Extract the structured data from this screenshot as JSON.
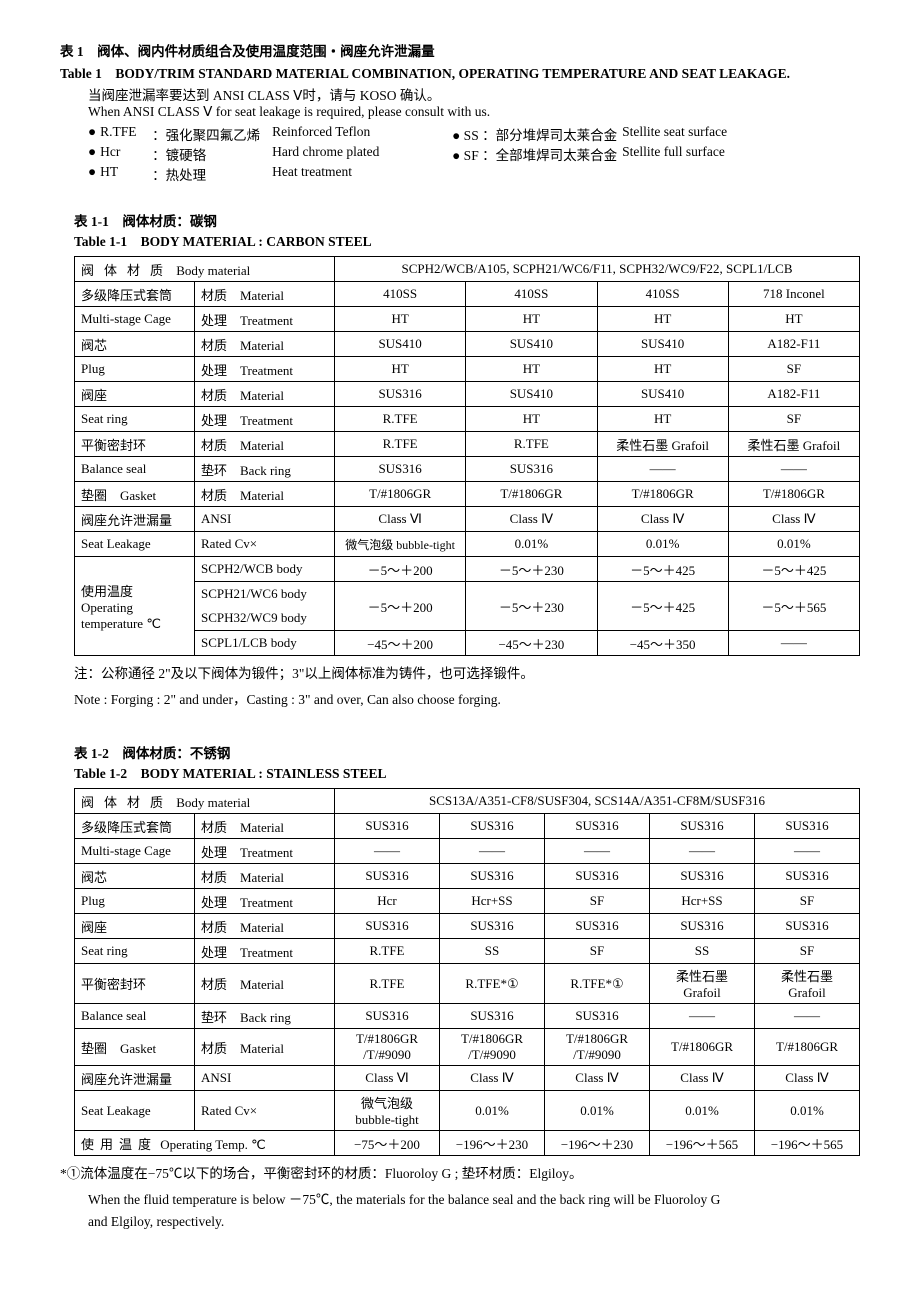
{
  "header": {
    "title_cn": "表 1　阀体、阀内件材质组合及使用温度范围・阀座允许泄漏量",
    "title_en": "Table 1　BODY/TRIM STANDARD MATERIAL COMBINATION, OPERATING TEMPERATURE AND SEAT LEAKAGE.",
    "note1_cn": "当阀座泄漏率要达到 ANSI CLASS Ⅴ时，请与 KOSO 确认。",
    "note1_en": "When ANSI CLASS Ⅴ for seat leakage is required, please consult with us.",
    "legend": [
      {
        "abbr": "R.TFE",
        "cn": "：强化聚四氟乙烯",
        "en": "Reinforced Teflon"
      },
      {
        "abbr": "Hcr",
        "cn": "：镀硬铬",
        "en": "Hard chrome plated"
      },
      {
        "abbr": "HT",
        "cn": "：热处理",
        "en": "Heat treatment"
      }
    ],
    "legend_right": [
      {
        "cn": "● SS ：部分堆焊司太莱合金",
        "en": "Stellite seat surface"
      },
      {
        "cn": "● SF ：全部堆焊司太莱合金",
        "en": "Stellite full surface"
      }
    ]
  },
  "table1_1": {
    "title_cn": "表 1-1　阀体材质：碳钢",
    "title_en": "Table 1-1　BODY MATERIAL : CARBON STEEL",
    "body_mat_cn": "阀体材质",
    "body_mat_en": "Body material",
    "body_mat_val": "SCPH2/WCB/A105, SCPH21/WC6/F11, SCPH32/WC9/F22, SCPL1/LCB",
    "rows": [
      {
        "l1": "多级降压式套筒",
        "l2": "材质　Material",
        "d": [
          "410SS",
          "410SS",
          "410SS",
          "718  Inconel"
        ]
      },
      {
        "l1": "Multi-stage Cage",
        "l2": "处理　Treatment",
        "d": [
          "HT",
          "HT",
          "HT",
          "HT"
        ]
      },
      {
        "l1": "阀芯",
        "l2": "材质　Material",
        "d": [
          "SUS410",
          "SUS410",
          "SUS410",
          "A182-F11"
        ]
      },
      {
        "l1": "Plug",
        "l2": "处理　Treatment",
        "d": [
          "HT",
          "HT",
          "HT",
          "SF"
        ]
      },
      {
        "l1": "阀座",
        "l2": "材质　Material",
        "d": [
          "SUS316",
          "SUS410",
          "SUS410",
          "A182-F11"
        ]
      },
      {
        "l1": "Seat ring",
        "l2": "处理　Treatment",
        "d": [
          "R.TFE",
          "HT",
          "HT",
          "SF"
        ]
      },
      {
        "l1": "平衡密封环",
        "l2": "材质　Material",
        "d": [
          "R.TFE",
          "R.TFE",
          "柔性石墨 Grafoil",
          "柔性石墨 Grafoil"
        ]
      },
      {
        "l1": "Balance seal",
        "l2": "垫环　Back ring",
        "d": [
          "SUS316",
          "SUS316",
          "——",
          "——"
        ]
      },
      {
        "l1s": "垫圈　Gasket",
        "l2": "材质　Material",
        "d": [
          "T/#1806GR",
          "T/#1806GR",
          "T/#1806GR",
          "T/#1806GR"
        ]
      },
      {
        "l1": "阀座允许泄漏量",
        "l2": "ANSI",
        "d": [
          "Class Ⅵ",
          "Class Ⅳ",
          "Class Ⅳ",
          "Class Ⅳ"
        ]
      },
      {
        "l1": "Seat Leakage",
        "l2": "Rated Cv×",
        "d": [
          "微气泡级 bubble-tight",
          "0.01%",
          "0.01%",
          "0.01%"
        ]
      }
    ],
    "temp_label_cn": "使用温度",
    "temp_label_en1": "Operating",
    "temp_label_en2": "temperature ℃",
    "temp_rows": [
      {
        "l": "SCPH2/WCB body",
        "d": [
          "－5～＋200",
          "－5～＋230",
          "－5～＋425",
          "－5～＋425"
        ]
      },
      {
        "l": "SCPH21/WC6 body",
        "d": [
          "－5～＋200",
          "－5～＋230",
          "－5～＋425",
          "－5～＋565"
        ],
        "merge": true
      },
      {
        "l": "SCPH32/WC9 body"
      },
      {
        "l": "SCPL1/LCB body",
        "d": [
          "−45～＋200",
          "−45～＋230",
          "−45～＋350",
          "——"
        ]
      }
    ],
    "note_cn": "注：公称通径 2\"及以下阀体为锻件；3\"以上阀体标准为铸件，也可选择锻件。",
    "note_en": "Note : Forging : 2\" and under，Casting : 3\" and over, Can also choose forging."
  },
  "table1_2": {
    "title_cn": "表 1-2　阀体材质：不锈钢",
    "title_en": "Table 1-2　BODY MATERIAL : STAINLESS STEEL",
    "body_mat_cn": "阀体材质",
    "body_mat_en": "Body material",
    "body_mat_val": "SCS13A/A351-CF8/SUSF304, SCS14A/A351-CF8M/SUSF316",
    "rows": [
      {
        "l1": "多级降压式套筒",
        "l2": "材质　Material",
        "d": [
          "SUS316",
          "SUS316",
          "SUS316",
          "SUS316",
          "SUS316"
        ]
      },
      {
        "l1": "Multi-stage Cage",
        "l2": "处理　Treatment",
        "d": [
          "——",
          "——",
          "——",
          "——",
          "——"
        ]
      },
      {
        "l1": "阀芯",
        "l2": "材质　Material",
        "d": [
          "SUS316",
          "SUS316",
          "SUS316",
          "SUS316",
          "SUS316"
        ]
      },
      {
        "l1": "Plug",
        "l2": "处理　Treatment",
        "d": [
          "Hcr",
          "Hcr+SS",
          "SF",
          "Hcr+SS",
          "SF"
        ]
      },
      {
        "l1": "阀座",
        "l2": "材质　Material",
        "d": [
          "SUS316",
          "SUS316",
          "SUS316",
          "SUS316",
          "SUS316"
        ]
      },
      {
        "l1": "Seat ring",
        "l2": "处理　Treatment",
        "d": [
          "R.TFE",
          "SS",
          "SF",
          "SS",
          "SF"
        ]
      },
      {
        "l1": "平衡密封环",
        "l2": "材质　Material",
        "d": [
          "R.TFE",
          "R.TFE*①",
          "R.TFE*①",
          "柔性石墨 Grafoil",
          "柔性石墨 Grafoil"
        ]
      },
      {
        "l1": "Balance seal",
        "l2": "垫环　Back ring",
        "d": [
          "SUS316",
          "SUS316",
          "SUS316",
          "——",
          "——"
        ]
      }
    ],
    "gasket_l1": "垫圈　Gasket",
    "gasket_l2": "材质　Material",
    "gasket_d_a": [
      "T/#1806GR",
      "T/#1806GR",
      "T/#1806GR",
      "T/#1806GR",
      "T/#1806GR"
    ],
    "gasket_d_b": [
      "/T/#9090",
      "/T/#9090",
      "/T/#9090",
      "",
      ""
    ],
    "leak_rows": [
      {
        "l1": "阀座允许泄漏量",
        "l2": "ANSI",
        "d": [
          "Class Ⅵ",
          "Class Ⅳ",
          "Class Ⅳ",
          "Class Ⅳ",
          "Class Ⅳ"
        ]
      }
    ],
    "leak_l1b": "Seat Leakage",
    "leak_l2b": "Rated Cv×",
    "leak_db_a": "微气泡级",
    "leak_db_b": "bubble-tight",
    "leak_db_rest": [
      "0.01%",
      "0.01%",
      "0.01%",
      "0.01%"
    ],
    "temp_l_cn": "使用温度",
    "temp_l_en": "Operating Temp. ℃",
    "temp_d": [
      "−75～＋200",
      "−196～＋230",
      "−196～＋230",
      "−196～＋565",
      "−196～＋565"
    ],
    "foot_cn": "*①流体温度在−75℃以下的场合，平衡密封环的材质：Fluoroloy G ; 垫环材质：Elgiloy。",
    "foot_en1": "When the fluid temperature is below －75℃, the materials for the balance seal and the back ring will be Fluoroloy G",
    "foot_en2": "and Elgiloy, respectively."
  }
}
